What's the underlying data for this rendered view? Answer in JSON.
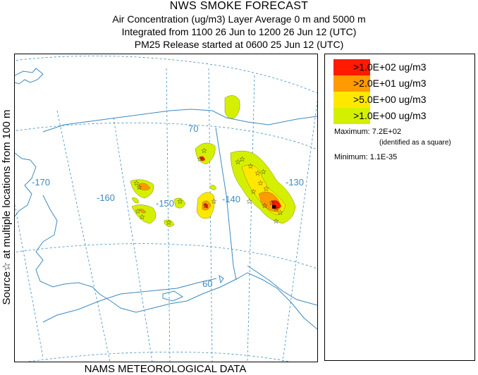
{
  "header": {
    "title": "NWS SMOKE FORECAST",
    "line1": "Air Concentration (ug/m3) Layer Average    0 m and  5000 m",
    "line2": "Integrated from 1100 26 Jun to 1200 26 Jun 12 (UTC)",
    "line3": "PM25 Release started at 0600 25 Jun 12 (UTC)"
  },
  "side_label": "Source☆  at multiple locations   from   100 m",
  "footer": "NAMS METEOROLOGICAL DATA",
  "map": {
    "longitude_labels": [
      "-170",
      "-160",
      "-150",
      "-140",
      "-130"
    ],
    "latitude_labels": [
      "70",
      "60"
    ],
    "grid_color": "#3b8bbf",
    "coast_color": "#3b8bbf"
  },
  "legend": {
    "items": [
      {
        "label": ">1.0E+02 ug/m3",
        "color": "#ff1a00"
      },
      {
        "label": ">2.0E+01 ug/m3",
        "color": "#ff9a00"
      },
      {
        "label": ">5.0E+00 ug/m3",
        "color": "#ffe800"
      },
      {
        "label": ">1.0E+00 ug/m3",
        "color": "#d4f000"
      }
    ],
    "maximum_label": "Maximum: 7.2E+02",
    "maximum_note": "(identified as a square)",
    "minimum_label": "Minimum: 1.1E-35"
  }
}
